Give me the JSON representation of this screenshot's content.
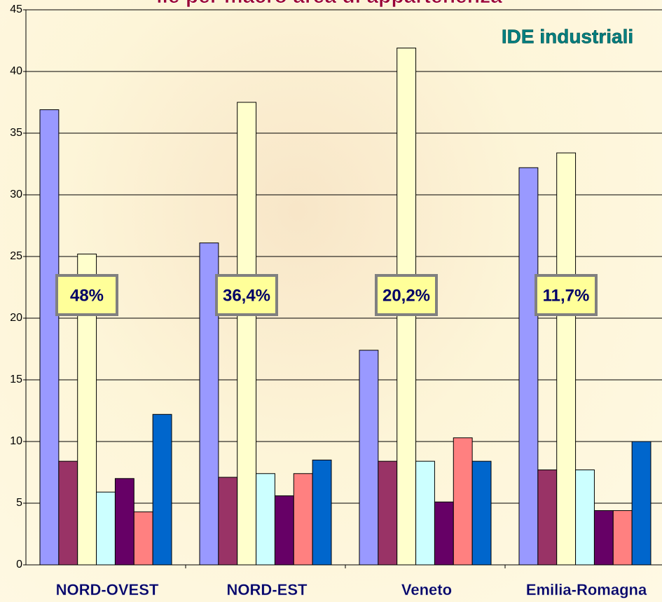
{
  "chart_data": {
    "type": "bar",
    "title": "ile per macro area di appartenenza",
    "subtitle": "IDE industriali",
    "annotations": [
      "48%",
      "36,4%",
      "20,2%",
      "11,7%"
    ],
    "categories": [
      "NORD-OVEST",
      "NORD-EST",
      "Veneto",
      "Emilia-Romagna"
    ],
    "series": [
      {
        "color": "#9999ff",
        "values": [
          36.9,
          26.1,
          17.4,
          32.2
        ]
      },
      {
        "color": "#993366",
        "values": [
          8.4,
          7.1,
          8.4,
          7.7
        ]
      },
      {
        "color": "#ffffcc",
        "values": [
          25.2,
          37.5,
          41.9,
          33.4
        ]
      },
      {
        "color": "#ccffff",
        "values": [
          5.9,
          7.4,
          8.4,
          7.7
        ]
      },
      {
        "color": "#660066",
        "values": [
          7.0,
          5.6,
          5.1,
          4.4
        ]
      },
      {
        "color": "#ff8080",
        "values": [
          4.3,
          7.4,
          10.3,
          4.4
        ]
      },
      {
        "color": "#0066cc",
        "values": [
          12.2,
          8.5,
          8.4,
          10
        ]
      }
    ],
    "ylim": [
      0,
      45
    ],
    "yticks": [
      0,
      5,
      10,
      15,
      20,
      25,
      30,
      35,
      40,
      45
    ],
    "grid": true
  }
}
